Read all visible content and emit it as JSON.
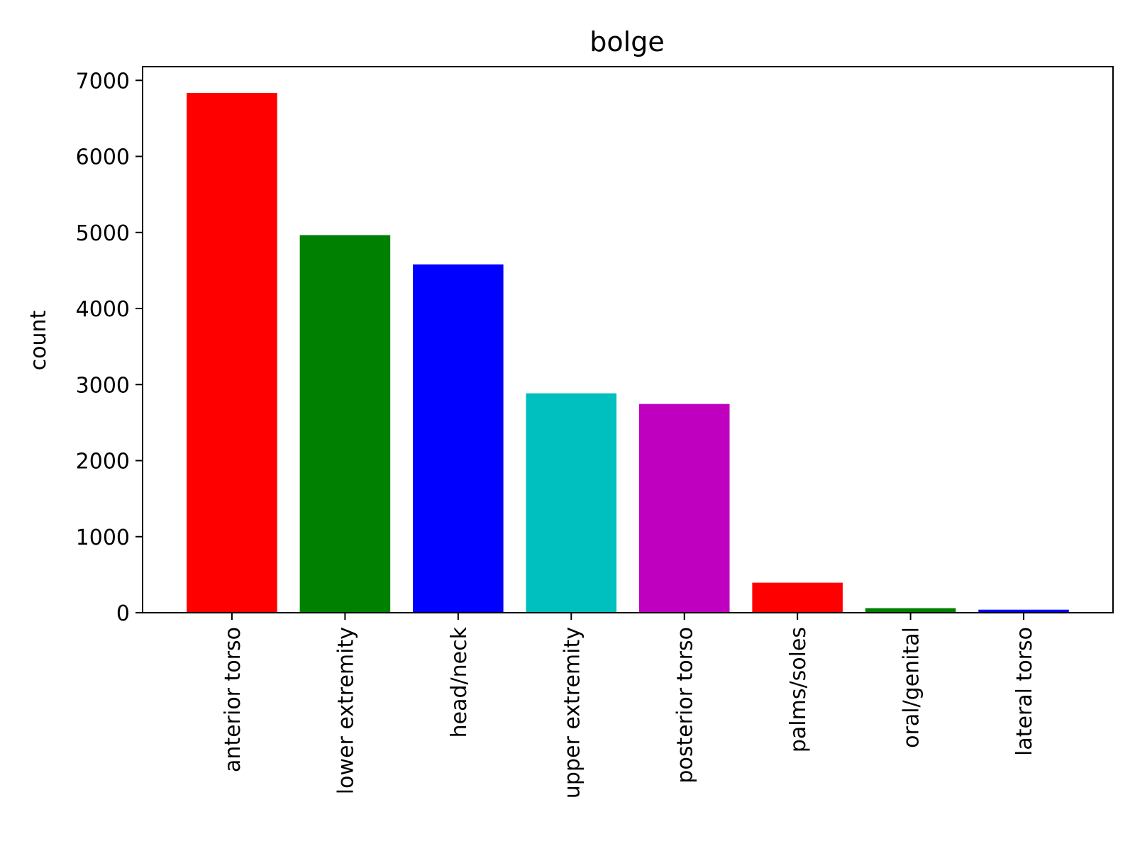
{
  "chart_data": {
    "type": "bar",
    "title": "bolge",
    "xlabel": "",
    "ylabel": "count",
    "categories": [
      "anterior torso",
      "lower extremity",
      "head/neck",
      "upper extremity",
      "posterior torso",
      "palms/soles",
      "oral/genital",
      "lateral torso"
    ],
    "values": [
      6835,
      4965,
      4580,
      2885,
      2745,
      395,
      60,
      40
    ],
    "colors": [
      "#ff0000",
      "#008000",
      "#0000ff",
      "#00bfbf",
      "#bf00bf",
      "#ff0000",
      "#008000",
      "#0000ff"
    ],
    "ylim": [
      0,
      7180
    ],
    "yticks": [
      0,
      1000,
      2000,
      3000,
      4000,
      5000,
      6000,
      7000
    ],
    "grid": false,
    "legend": "none"
  }
}
